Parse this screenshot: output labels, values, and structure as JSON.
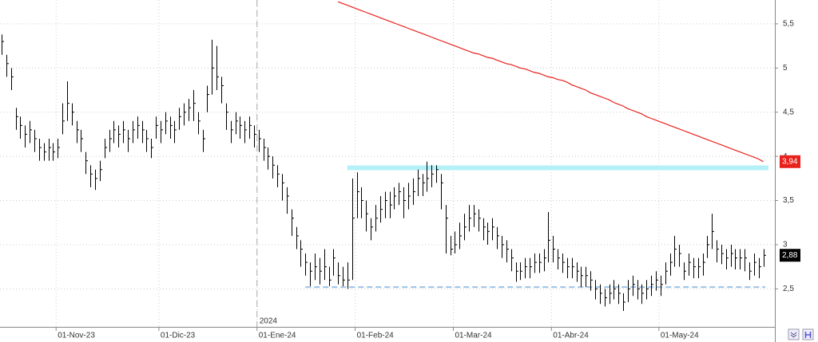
{
  "chart_data": {
    "type": "ohlc",
    "categories": [
      null,
      null,
      null,
      null,
      null,
      null,
      null,
      null,
      null,
      null,
      null,
      null,
      "01-Nov-23",
      null,
      null,
      null,
      null,
      null,
      null,
      null,
      null,
      null,
      null,
      null,
      null,
      null,
      null,
      null,
      null,
      null,
      null,
      null,
      null,
      null,
      "01-Dic-23",
      null,
      null,
      null,
      null,
      null,
      null,
      null,
      null,
      null,
      null,
      null,
      null,
      null,
      null,
      null,
      null,
      null,
      null,
      null,
      null,
      "01-Ene-24",
      null,
      null,
      null,
      null,
      null,
      null,
      null,
      null,
      null,
      null,
      null,
      null,
      null,
      null,
      null,
      null,
      null,
      null,
      null,
      null,
      "01-Feb-24",
      null,
      null,
      null,
      null,
      null,
      null,
      null,
      null,
      null,
      null,
      null,
      null,
      null,
      null,
      null,
      null,
      null,
      null,
      null,
      null,
      "01-Mar-24",
      null,
      null,
      null,
      null,
      null,
      null,
      null,
      null,
      null,
      null,
      null,
      null,
      null,
      null,
      null,
      null,
      null,
      null,
      null,
      null,
      "01-Abr-24",
      null,
      null,
      null,
      null,
      null,
      null,
      null,
      null,
      null,
      null,
      null,
      null,
      null,
      null,
      null,
      null,
      null,
      null,
      null,
      null,
      null,
      null,
      "01-May-24",
      null,
      null,
      null,
      null,
      null,
      null,
      null,
      null,
      null,
      null,
      null,
      null,
      null,
      null,
      null,
      null,
      null,
      null,
      null,
      null,
      null,
      null
    ],
    "year_label": "2024",
    "high": [
      5.38,
      5.15,
      5.0,
      4.55,
      4.45,
      4.35,
      4.4,
      4.3,
      4.2,
      4.15,
      4.2,
      4.15,
      4.2,
      4.6,
      4.85,
      4.6,
      4.4,
      4.3,
      4.05,
      3.9,
      3.85,
      3.95,
      4.2,
      4.3,
      4.4,
      4.35,
      4.4,
      4.3,
      4.4,
      4.45,
      4.4,
      4.3,
      4.2,
      4.45,
      4.4,
      4.5,
      4.45,
      4.4,
      4.55,
      4.6,
      4.65,
      4.75,
      4.5,
      4.3,
      4.8,
      5.32,
      5.25,
      4.9,
      4.6,
      4.4,
      4.5,
      4.45,
      4.4,
      4.45,
      4.35,
      4.3,
      4.2,
      4.1,
      4.0,
      3.9,
      3.8,
      3.65,
      3.4,
      3.2,
      3.05,
      2.9,
      2.8,
      2.9,
      2.85,
      2.95,
      2.75,
      2.95,
      2.8,
      2.75,
      2.8,
      3.75,
      3.82,
      3.65,
      3.5,
      3.3,
      3.45,
      3.55,
      3.6,
      3.6,
      3.65,
      3.7,
      3.65,
      3.7,
      3.75,
      3.85,
      3.8,
      3.94,
      3.9,
      3.9,
      3.8,
      3.45,
      3.1,
      3.15,
      3.25,
      3.35,
      3.45,
      3.45,
      3.4,
      3.3,
      3.25,
      3.3,
      3.2,
      3.1,
      3.05,
      2.95,
      2.8,
      2.8,
      2.85,
      2.85,
      2.9,
      2.9,
      2.95,
      3.37,
      3.1,
      2.95,
      2.9,
      2.85,
      2.85,
      2.8,
      2.75,
      2.75,
      2.7,
      2.6,
      2.55,
      2.5,
      2.55,
      2.6,
      2.55,
      2.45,
      2.6,
      2.65,
      2.6,
      2.55,
      2.6,
      2.65,
      2.7,
      2.65,
      2.8,
      2.9,
      3.1,
      3.0,
      2.8,
      2.9,
      2.85,
      2.85,
      2.9,
      3.1,
      3.35,
      3.05,
      3.0,
      2.95,
      3.0,
      2.95,
      2.95,
      2.95,
      2.8,
      2.9,
      2.85,
      2.95
    ],
    "low": [
      5.15,
      4.9,
      4.75,
      4.3,
      4.2,
      4.1,
      4.15,
      4.05,
      3.95,
      3.95,
      3.95,
      3.95,
      3.98,
      4.25,
      4.4,
      4.35,
      4.15,
      4.05,
      3.8,
      3.65,
      3.62,
      3.72,
      3.98,
      4.05,
      4.15,
      4.1,
      4.15,
      4.05,
      4.15,
      4.2,
      4.15,
      4.05,
      3.98,
      4.2,
      4.15,
      4.25,
      4.2,
      4.15,
      4.3,
      4.35,
      4.4,
      4.4,
      4.25,
      4.05,
      4.5,
      4.7,
      4.75,
      4.6,
      4.3,
      4.15,
      4.25,
      4.2,
      4.15,
      4.2,
      4.1,
      4.05,
      3.95,
      3.85,
      3.75,
      3.65,
      3.5,
      3.35,
      3.1,
      2.95,
      2.75,
      2.65,
      2.53,
      2.6,
      2.55,
      2.6,
      2.53,
      2.65,
      2.55,
      2.53,
      2.5,
      2.6,
      3.3,
      3.3,
      3.15,
      3.05,
      3.15,
      3.25,
      3.3,
      3.3,
      3.4,
      3.45,
      3.3,
      3.4,
      3.45,
      3.55,
      3.55,
      3.6,
      3.65,
      3.7,
      3.4,
      2.9,
      2.88,
      2.9,
      2.95,
      3.05,
      3.15,
      3.2,
      3.15,
      3.05,
      3.0,
      3.05,
      2.95,
      2.85,
      2.8,
      2.7,
      2.58,
      2.6,
      2.62,
      2.62,
      2.68,
      2.68,
      2.7,
      2.8,
      2.8,
      2.72,
      2.68,
      2.62,
      2.62,
      2.58,
      2.52,
      2.52,
      2.48,
      2.38,
      2.33,
      2.3,
      2.33,
      2.38,
      2.33,
      2.25,
      2.35,
      2.42,
      2.38,
      2.33,
      2.38,
      2.42,
      2.48,
      2.42,
      2.55,
      2.65,
      2.75,
      2.75,
      2.6,
      2.65,
      2.62,
      2.62,
      2.65,
      2.85,
      2.95,
      2.8,
      2.78,
      2.72,
      2.75,
      2.72,
      2.72,
      2.7,
      2.6,
      2.65,
      2.62,
      2.75
    ],
    "close": [
      5.3,
      5.05,
      4.9,
      4.45,
      4.35,
      4.25,
      4.3,
      4.2,
      4.1,
      4.05,
      4.1,
      4.05,
      4.1,
      4.4,
      4.6,
      4.5,
      4.3,
      4.2,
      3.95,
      3.8,
      3.75,
      3.85,
      4.1,
      4.2,
      4.3,
      4.25,
      4.3,
      4.2,
      4.3,
      4.35,
      4.3,
      4.2,
      4.1,
      4.35,
      4.3,
      4.4,
      4.35,
      4.3,
      4.45,
      4.5,
      4.55,
      4.6,
      4.4,
      4.2,
      4.7,
      5.0,
      4.9,
      4.8,
      4.5,
      4.3,
      4.4,
      4.35,
      4.3,
      4.35,
      4.25,
      4.2,
      4.1,
      4.0,
      3.9,
      3.8,
      3.7,
      3.55,
      3.3,
      3.1,
      2.95,
      2.8,
      2.7,
      2.75,
      2.7,
      2.75,
      2.6,
      2.85,
      2.65,
      2.6,
      2.6,
      3.3,
      3.6,
      3.5,
      3.35,
      3.2,
      3.3,
      3.4,
      3.5,
      3.45,
      3.55,
      3.6,
      3.5,
      3.55,
      3.6,
      3.75,
      3.7,
      3.75,
      3.8,
      3.85,
      3.7,
      3.3,
      2.95,
      3.0,
      3.1,
      3.2,
      3.3,
      3.35,
      3.3,
      3.2,
      3.15,
      3.2,
      3.1,
      3.0,
      2.95,
      2.85,
      2.7,
      2.7,
      2.75,
      2.75,
      2.8,
      2.8,
      2.85,
      3.05,
      2.95,
      2.85,
      2.8,
      2.75,
      2.75,
      2.7,
      2.65,
      2.65,
      2.6,
      2.5,
      2.45,
      2.4,
      2.45,
      2.5,
      2.45,
      2.35,
      2.5,
      2.55,
      2.5,
      2.45,
      2.5,
      2.55,
      2.6,
      2.55,
      2.7,
      2.8,
      2.95,
      2.9,
      2.7,
      2.8,
      2.75,
      2.75,
      2.8,
      3.0,
      3.15,
      2.95,
      2.9,
      2.85,
      2.9,
      2.85,
      2.85,
      2.85,
      2.7,
      2.8,
      2.75,
      2.88
    ],
    "close_label": "2,88",
    "bar_color": "#000000",
    "moving_average": {
      "color": "#e8211c",
      "last_label": "3,94",
      "values": [
        null,
        null,
        null,
        null,
        null,
        null,
        null,
        null,
        null,
        null,
        null,
        null,
        null,
        null,
        null,
        null,
        null,
        null,
        null,
        null,
        null,
        null,
        null,
        null,
        null,
        null,
        null,
        null,
        null,
        null,
        null,
        null,
        null,
        null,
        null,
        null,
        null,
        null,
        null,
        null,
        null,
        null,
        null,
        null,
        null,
        null,
        null,
        null,
        null,
        null,
        null,
        null,
        null,
        null,
        null,
        null,
        null,
        null,
        null,
        null,
        null,
        null,
        null,
        null,
        null,
        null,
        null,
        null,
        null,
        null,
        null,
        null,
        5.75,
        5.73,
        5.71,
        5.69,
        5.67,
        5.65,
        5.63,
        5.61,
        5.59,
        5.57,
        5.55,
        5.53,
        5.51,
        5.49,
        5.47,
        5.45,
        5.43,
        5.41,
        5.39,
        5.37,
        5.35,
        5.33,
        5.31,
        5.29,
        5.27,
        5.25,
        5.23,
        5.21,
        5.19,
        5.17,
        5.16,
        5.14,
        5.12,
        5.11,
        5.09,
        5.07,
        5.05,
        5.04,
        5.02,
        5.0,
        4.99,
        4.97,
        4.95,
        4.94,
        4.92,
        4.9,
        4.89,
        4.87,
        4.86,
        4.84,
        4.81,
        4.79,
        4.77,
        4.75,
        4.72,
        4.7,
        4.68,
        4.66,
        4.64,
        4.61,
        4.59,
        4.57,
        4.54,
        4.52,
        4.5,
        4.48,
        4.45,
        4.43,
        4.41,
        4.39,
        4.37,
        4.35,
        4.33,
        4.31,
        4.29,
        4.27,
        4.25,
        4.23,
        4.21,
        4.19,
        4.17,
        4.15,
        4.13,
        4.11,
        4.09,
        4.07,
        4.05,
        4.03,
        4.01,
        3.99,
        3.97,
        3.94
      ]
    },
    "resistance": {
      "value": 3.87,
      "color": "#b4f0f8"
    },
    "support": {
      "value": 2.52,
      "color": "#9cc3e6"
    },
    "ylim": [
      2.07,
      5.77
    ],
    "yticks": [
      {
        "value": 2.5,
        "label": "2,5"
      },
      {
        "value": 3,
        "label": "3"
      },
      {
        "value": 3.5,
        "label": "3,5"
      },
      {
        "value": 4,
        "label": "4"
      },
      {
        "value": 4.5,
        "label": "4,5"
      },
      {
        "value": 5,
        "label": "5"
      },
      {
        "value": 5.5,
        "label": "5,5"
      }
    ],
    "grid": true
  }
}
